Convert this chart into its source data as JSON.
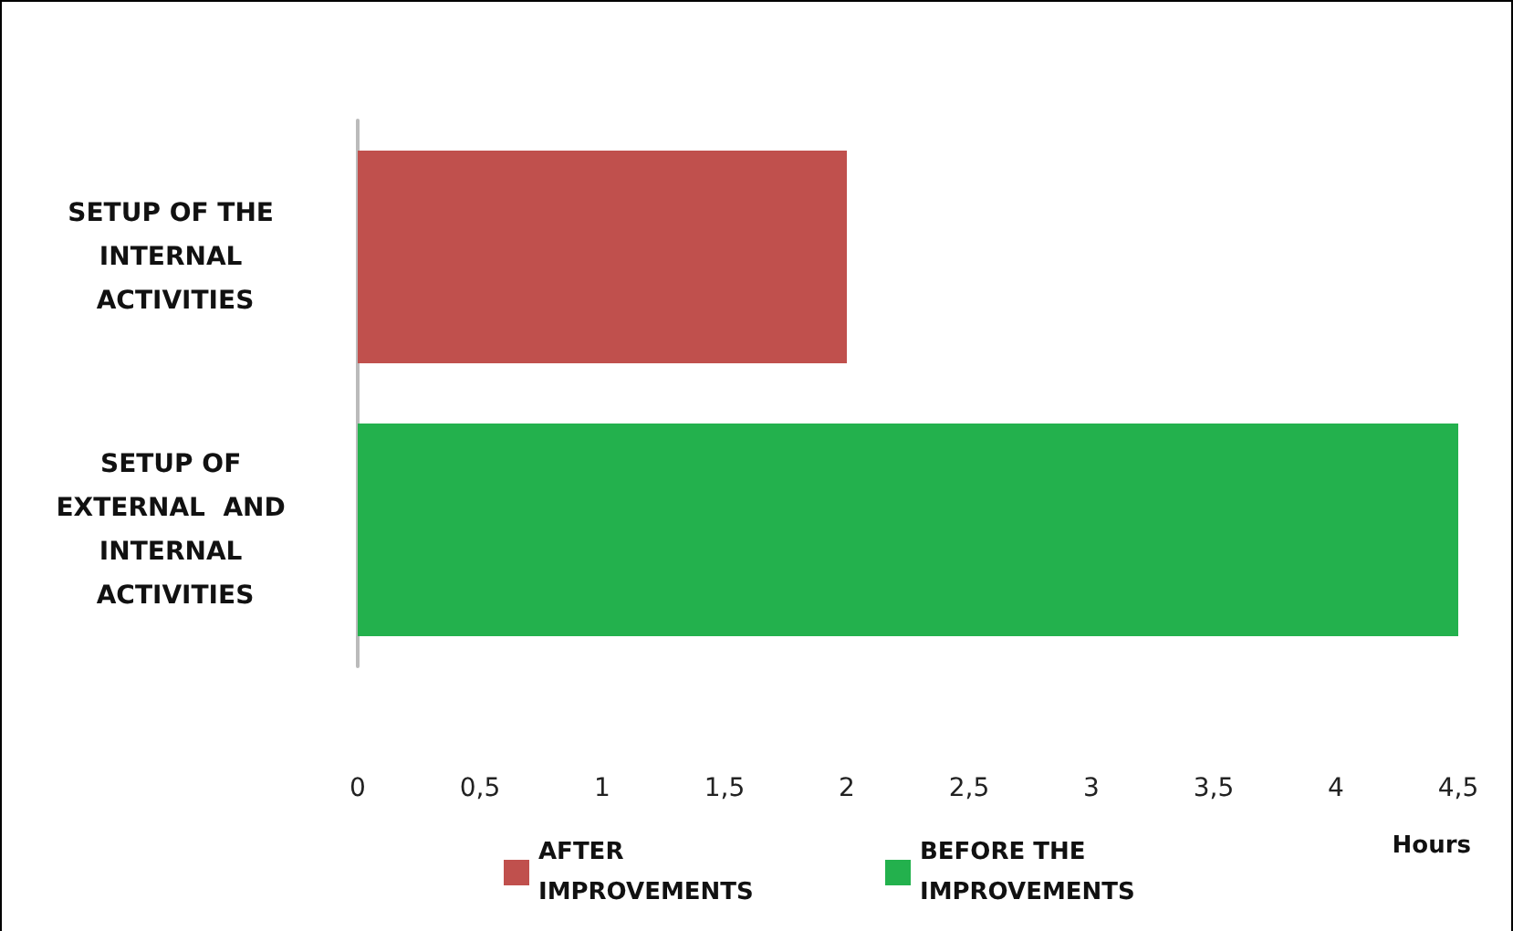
{
  "chart_data": {
    "type": "bar",
    "orientation": "horizontal",
    "categories": [
      "SETUP OF THE INTERNAL ACTIVITIES",
      "SETUP OF EXTERNAL  AND INTERNAL ACTIVITIES"
    ],
    "series": [
      {
        "name": "AFTER IMPROVEMENTS",
        "color": "#c0504d",
        "values": [
          2,
          null
        ]
      },
      {
        "name": "BEFORE THE IMPROVEMENTS",
        "color": "#23b14d",
        "values": [
          null,
          4.5
        ]
      }
    ],
    "xlabel": "Hours",
    "xlim": [
      0,
      4.5
    ],
    "xticks": [
      0,
      {
        "value": 0.5,
        "label": "0,5"
      },
      1,
      {
        "value": 1.5,
        "label": "1,5"
      },
      2,
      {
        "value": 2.5,
        "label": "2,5"
      },
      3,
      {
        "value": 3.5,
        "label": "3,5"
      },
      4,
      {
        "value": 4.5,
        "label": "4,5"
      }
    ],
    "grid": false,
    "legend": "bottom"
  }
}
